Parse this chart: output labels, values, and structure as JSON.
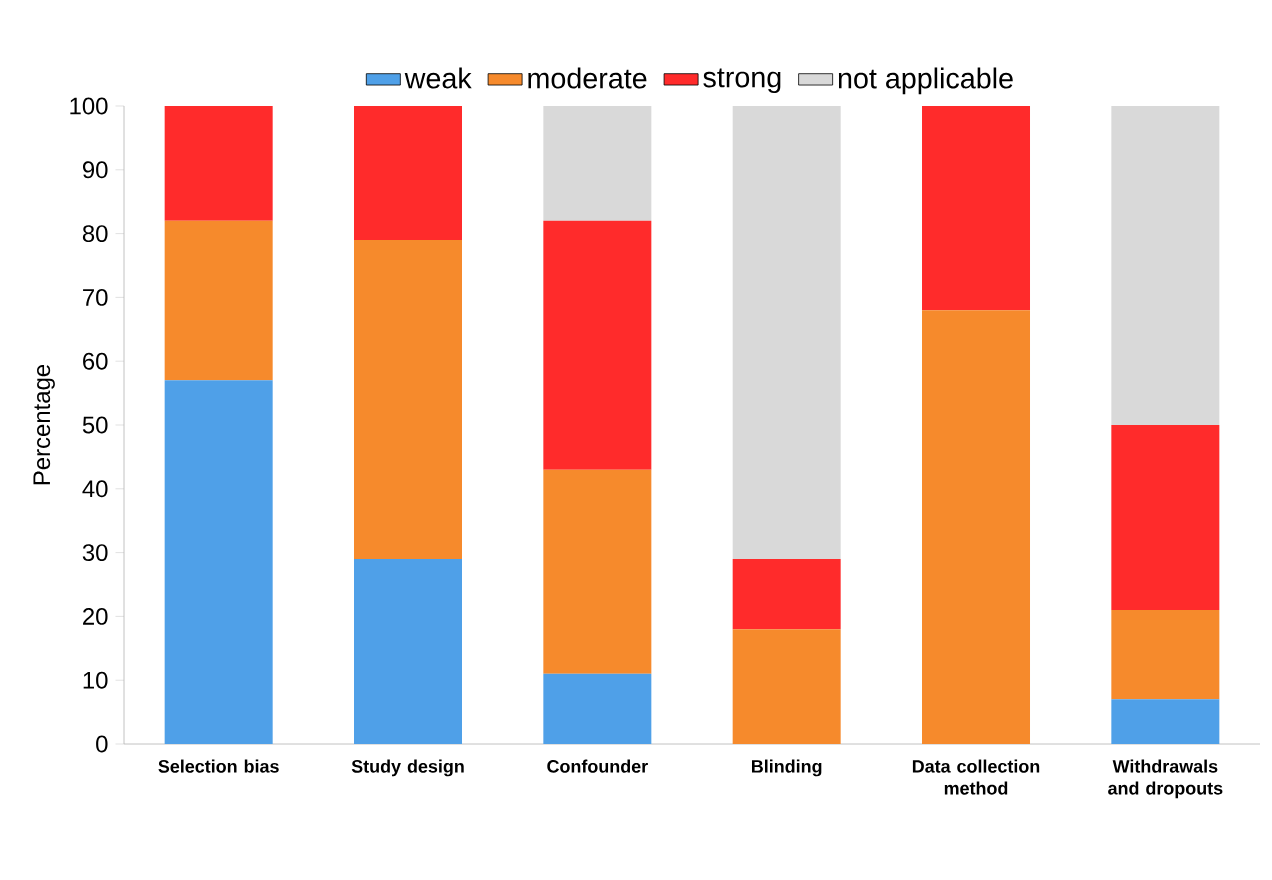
{
  "chart_data": {
    "type": "bar",
    "stacked": true,
    "ylabel": "Percentage",
    "categories": [
      "Selection bias",
      "Study design",
      "Confounder",
      "Blinding",
      "Data collection method",
      "Withdrawals and dropouts"
    ],
    "series": [
      {
        "name": "weak",
        "color": "#4fa0e8",
        "values": [
          57,
          29,
          11,
          0,
          0,
          7
        ]
      },
      {
        "name": "moderate",
        "color": "#f68a2c",
        "values": [
          25,
          50,
          32,
          18,
          68,
          14
        ]
      },
      {
        "name": "strong",
        "color": "#ff2b2b",
        "values": [
          18,
          21,
          39,
          11,
          32,
          29
        ]
      },
      {
        "name": "not applicable",
        "color": "#d9d9d9",
        "values": [
          0,
          0,
          18,
          71,
          0,
          50
        ]
      }
    ],
    "ylim": [
      0,
      100
    ],
    "yticks": [
      0,
      10,
      20,
      30,
      40,
      50,
      60,
      70,
      80,
      90,
      100
    ],
    "grid": false,
    "legend": "top"
  }
}
